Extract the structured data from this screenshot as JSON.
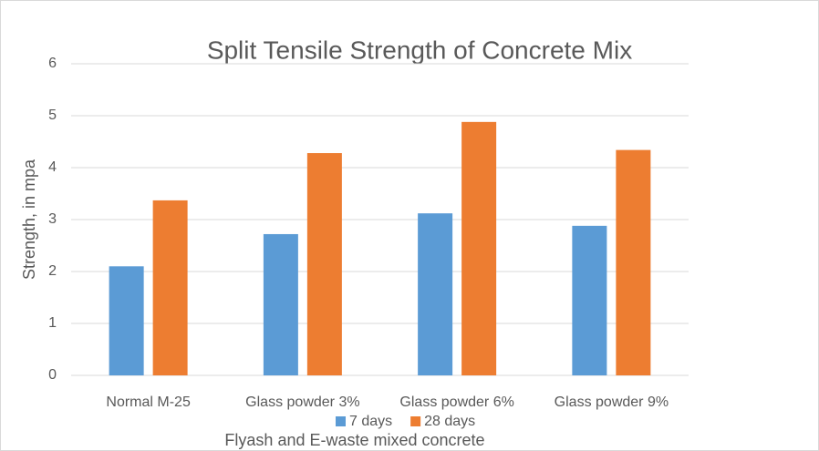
{
  "chart_data": {
    "type": "bar",
    "title": "Split Tensile Strength of Concrete Mix",
    "xlabel": "Flyash and E-waste mixed concrete",
    "ylabel": "Strength, in mpa",
    "categories": [
      "Normal M-25",
      "Glass powder 3%",
      "Glass powder 6%",
      "Glass powder 9%"
    ],
    "series": [
      {
        "name": "7 days",
        "color": "#5b9bd5",
        "values": [
          2.1,
          2.72,
          3.12,
          2.88
        ]
      },
      {
        "name": "28 days",
        "color": "#ed7d31",
        "values": [
          3.37,
          4.28,
          4.88,
          4.34
        ]
      }
    ],
    "ylim": [
      0,
      6
    ],
    "yticks": [
      0,
      1,
      2,
      3,
      4,
      5,
      6
    ],
    "grid": true,
    "legend": "bottom"
  }
}
